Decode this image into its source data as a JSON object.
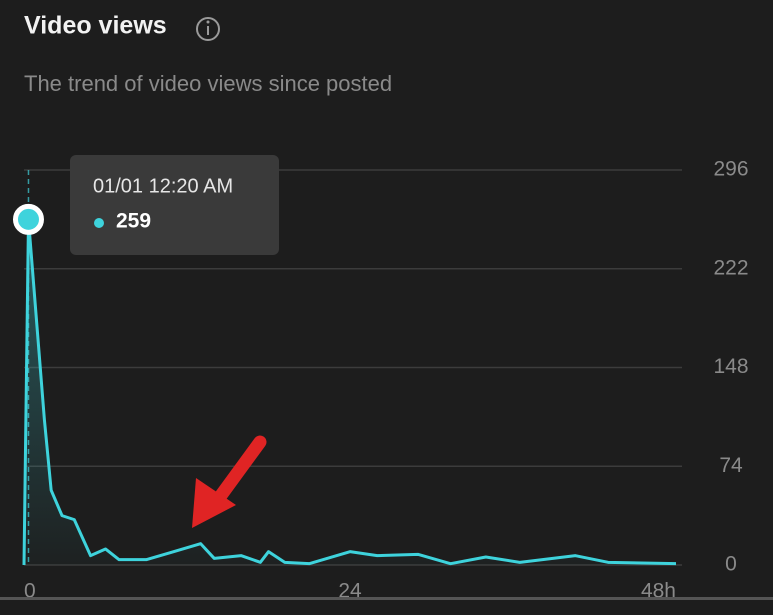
{
  "chart_data": {
    "type": "area",
    "title": "Video views",
    "subtitle": "The trend of video views since posted",
    "x": [
      0,
      0.33,
      1.5,
      2,
      2.8,
      3.7,
      4.9,
      6,
      7,
      9,
      10.7,
      13,
      14,
      16,
      17.4,
      18,
      19.2,
      21,
      24,
      26,
      29,
      31.4,
      34,
      36.5,
      40.6,
      43,
      48
    ],
    "series": [
      {
        "name": "Video views",
        "color": "#3ed3dc",
        "values": [
          0,
          259,
          109,
          56,
          37,
          34,
          7,
          12,
          4,
          4,
          9,
          16,
          5,
          7,
          2,
          10,
          2,
          1,
          10,
          7,
          8,
          1,
          6,
          2,
          7,
          2,
          1
        ]
      }
    ],
    "xlim": [
      0,
      48
    ],
    "xticks": [
      0,
      24,
      {
        "value": 48,
        "label": "48h"
      }
    ],
    "ylim": [
      0,
      296
    ],
    "yticks": [
      0,
      74,
      148,
      222,
      296
    ],
    "grid": true,
    "tooltip": {
      "label": "01/01 12:20 AM",
      "value": 259
    }
  }
}
